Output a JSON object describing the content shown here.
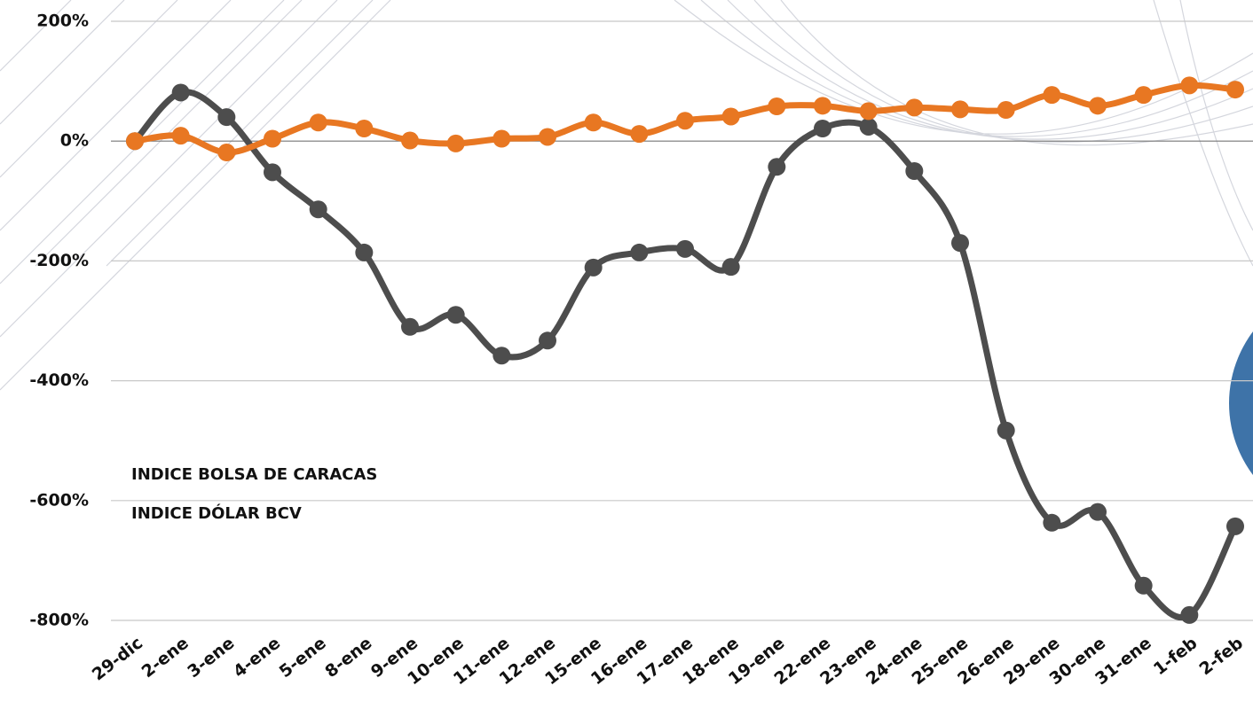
{
  "chart_data": {
    "type": "line",
    "categories": [
      "29-dic",
      "2-ene",
      "3-ene",
      "4-ene",
      "5-ene",
      "8-ene",
      "9-ene",
      "10-ene",
      "11-ene",
      "12-ene",
      "15-ene",
      "16-ene",
      "17-ene",
      "18-ene",
      "19-ene",
      "22-ene",
      "23-ene",
      "24-ene",
      "25-ene",
      "26-ene",
      "29-ene",
      "30-ene",
      "31-ene",
      "1-feb",
      "2-feb"
    ],
    "series": [
      {
        "name": "INDICE BOLSA DE CARACAS",
        "color": "#4d4d4d",
        "values": [
          0,
          81,
          40,
          -52,
          -114,
          -186,
          -310,
          -290,
          -358,
          -333,
          -211,
          -186,
          -180,
          -210,
          -43,
          21,
          24,
          -50,
          -170,
          -483,
          -637,
          -619,
          -742,
          -791,
          -643
        ]
      },
      {
        "name": "INDICE DÓLAR BCV",
        "color": "#e87722",
        "values": [
          0,
          9,
          -19,
          4,
          31,
          21,
          1,
          -4,
          4,
          7,
          31,
          12,
          34,
          41,
          58,
          59,
          50,
          56,
          53,
          52,
          77,
          59,
          77,
          93,
          86
        ]
      }
    ],
    "ylim": [
      -800,
      200
    ],
    "yticks": [
      {
        "value": -800,
        "label": "-800%"
      },
      {
        "value": -600,
        "label": "-600%"
      },
      {
        "value": -400,
        "label": "-400%"
      },
      {
        "value": -200,
        "label": "-200%"
      },
      {
        "value": 0,
        "label": "0%"
      },
      {
        "value": 200,
        "label": "200%"
      }
    ],
    "grid": true
  }
}
